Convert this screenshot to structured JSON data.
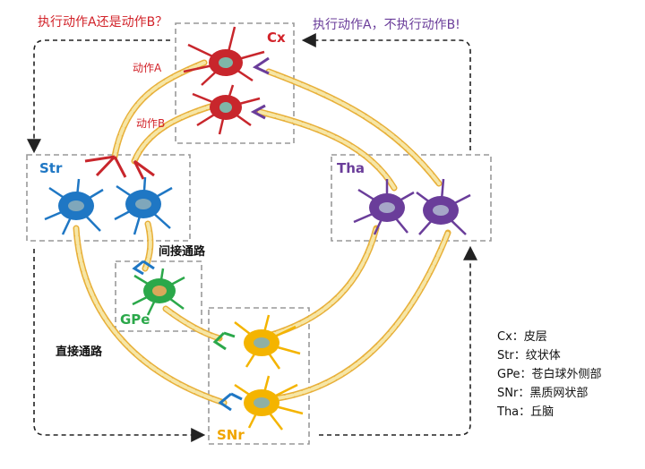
{
  "question_left": "执行动作A还是动作B？",
  "question_right": "执行动作A，不执行动作B!",
  "regions": {
    "cx": "Cx",
    "str": "Str",
    "tha": "Tha",
    "gpe": "GPe",
    "snr": "SNr"
  },
  "actions": {
    "a": "动作A",
    "b": "动作B"
  },
  "pathways": {
    "indirect": "间接通路",
    "direct": "直接通路"
  },
  "legend": [
    "Cx：皮层",
    "Str：纹状体",
    "GPe：苍白球外侧部",
    "SNr：黑质网状部",
    "Tha：丘脑"
  ],
  "colors": {
    "cortex_neuron": "#c8262c",
    "striatum_neuron": "#1f77c4",
    "thalamus_neuron": "#6a3d9a",
    "gpe_neuron": "#2ba84a",
    "snr_neuron": "#f4b400",
    "axon": "#f2c14e",
    "myelin": "#f6e6a6"
  }
}
